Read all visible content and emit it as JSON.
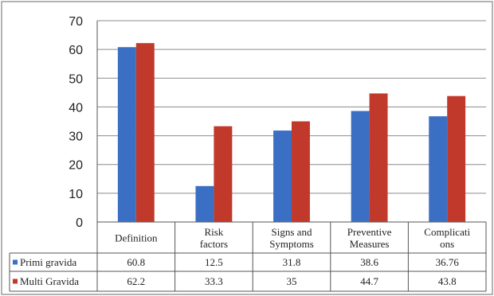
{
  "chart_data": {
    "type": "bar",
    "categories": [
      [
        "Definition"
      ],
      [
        "Risk",
        "factors"
      ],
      [
        "Signs and",
        "Symptoms"
      ],
      [
        "Preventive",
        "Measures"
      ],
      [
        "Complicati",
        "ons"
      ]
    ],
    "series": [
      {
        "name": "Primi gravida",
        "values": [
          60.8,
          12.5,
          31.8,
          38.6,
          36.76
        ],
        "labels": [
          "60.8",
          "12.5",
          "31.8",
          "38.6",
          "36.76"
        ],
        "color": "#3a6fc4"
      },
      {
        "name": "Multi Gravida",
        "values": [
          62.2,
          33.3,
          35,
          44.7,
          43.8
        ],
        "labels": [
          "62.2",
          "33.3",
          "35",
          "44.7",
          "43.8"
        ],
        "color": "#c0392b"
      }
    ],
    "ylim": [
      0,
      70
    ],
    "yticks": [
      "0",
      "10",
      "20",
      "30",
      "40",
      "50",
      "60",
      "70"
    ],
    "grid": true,
    "legend": "data-table-left",
    "title": "",
    "xlabel": "",
    "ylabel": ""
  }
}
